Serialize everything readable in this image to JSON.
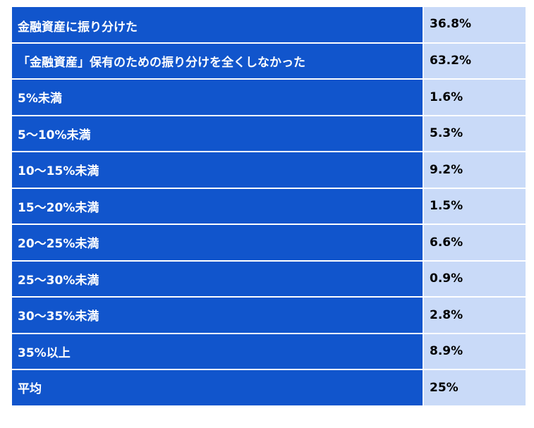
{
  "table": {
    "rows": [
      [
        "金融資産に振り分けた",
        "36.8%"
      ],
      [
        "「金融資産」保有のための振り分けを全くしなかった",
        "63.2%"
      ],
      [
        "5%未満",
        "1.6%"
      ],
      [
        "5～10%未満",
        "5.3%"
      ],
      [
        "10～15%未満",
        "9.2%"
      ],
      [
        "15～20%未満",
        "1.5%"
      ],
      [
        "20～25%未満",
        "6.6%"
      ],
      [
        "25～30%未満",
        "0.9%"
      ],
      [
        "30～35%未満",
        "2.8%"
      ],
      [
        "35%以上",
        "8.9%"
      ],
      [
        "平均",
        "25%"
      ]
    ]
  }
}
